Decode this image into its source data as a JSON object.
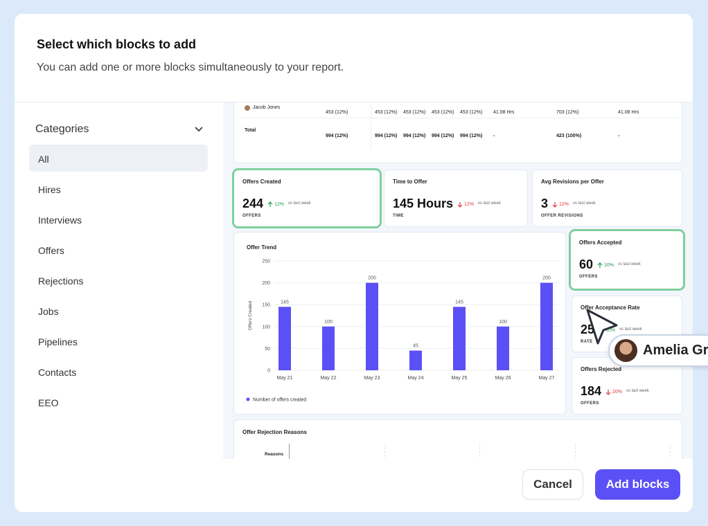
{
  "header": {
    "title": "Select which blocks to add",
    "subtitle": "You can add one or more blocks simultaneously to your report."
  },
  "sidebar": {
    "heading": "Categories",
    "items": [
      "All",
      "Hires",
      "Interviews",
      "Offers",
      "Rejections",
      "Jobs",
      "Pipelines",
      "Contacts",
      "EEO"
    ],
    "selected": 0
  },
  "table": {
    "rows": [
      [
        "Jacob Jones",
        "453 (12%)",
        "453 (12%)",
        "453 (12%)",
        "453 (12%)",
        "453 (12%)",
        "41.08 Hrs",
        "703 (12%)",
        "41.08 Hrs"
      ],
      [
        "Total",
        "994 (12%)",
        "994 (12%)",
        "994 (12%)",
        "994 (12%)",
        "994 (12%)",
        "-",
        "423 (100%)",
        "-"
      ]
    ]
  },
  "kpis": [
    {
      "title": "Offers Created",
      "value": 244,
      "change": "12%",
      "direction": "up",
      "note": "vs last week",
      "unit": "OFFERS",
      "selected": true
    },
    {
      "title": "Time to Offer",
      "value": "145 Hours",
      "change": "12%",
      "direction": "down",
      "note": "vs last week",
      "unit": "TIME",
      "selected": false
    },
    {
      "title": "Avg Revisions per Offer",
      "value": 3,
      "change": "12%",
      "direction": "down",
      "note": "vs last week",
      "unit": "OFFER REVISIONS",
      "selected": false
    },
    {
      "title": "Offers Accepted",
      "value": 60,
      "change": "10%",
      "direction": "up",
      "note": "vs last week",
      "unit": "OFFERS",
      "selected": true
    },
    {
      "title": "Offer Acceptance Rate",
      "value": 25,
      "change": "10%",
      "direction": "up",
      "note": "vs last week",
      "unit": "RATE",
      "selected": false
    },
    {
      "title": "Offers Rejected",
      "value": 184,
      "change": "20%",
      "direction": "down",
      "note": "vs last week",
      "unit": "OFFERS",
      "selected": false
    }
  ],
  "chart_data": {
    "type": "bar",
    "title": "Offer Trend",
    "y_label": "Offers Created",
    "categories": [
      "May 21",
      "May 22",
      "May 23",
      "May 24",
      "May 25",
      "May 26",
      "May 27"
    ],
    "values": [
      145,
      100,
      200,
      45,
      145,
      100,
      200
    ],
    "color": "#5b50f5",
    "ylim": [
      0,
      250
    ],
    "yticks": [
      0,
      50,
      100,
      150,
      200,
      250
    ],
    "grid": true,
    "legend": "Number of offers created"
  },
  "rejection": {
    "title": "Offer Rejection Reasons",
    "column": "Reasons"
  },
  "cursor_user": "Amelia Gr",
  "buttons": {
    "cancel": "Cancel",
    "add": "Add blocks"
  }
}
